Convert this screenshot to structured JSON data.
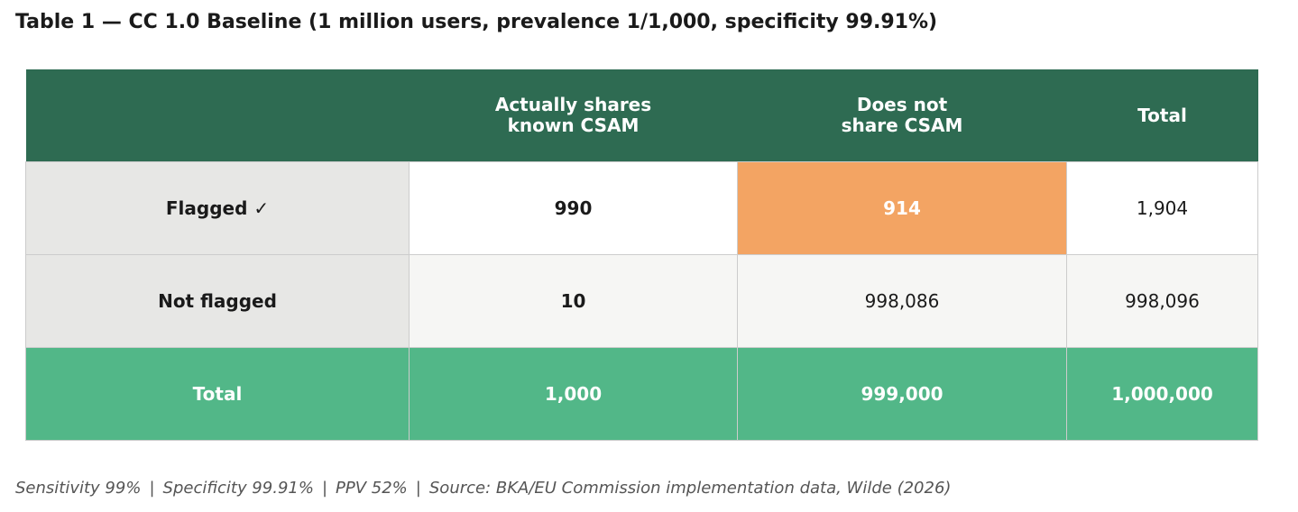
{
  "chart_data": {
    "type": "table",
    "title": "Table 1 — CC 1.0 Baseline  (1 million users, prevalence 1/1,000, specificity 99.91%)",
    "columns": [
      "",
      "Actually shares\nknown CSAM",
      "Does not\nshare CSAM",
      "Total"
    ],
    "rows": [
      {
        "label": "Flagged  ✓",
        "values": [
          "990",
          "914",
          "1,904"
        ]
      },
      {
        "label": "Not flagged",
        "values": [
          "10",
          "998,086",
          "998,096"
        ]
      },
      {
        "label": "Total",
        "values": [
          "1,000",
          "999,000",
          "1,000,000"
        ]
      }
    ],
    "footnote": [
      "Sensitivity 99%",
      "Specificity 99.91%",
      "PPV 52%",
      "Source: BKA/EU Commission implementation data, Wilde (2026)"
    ]
  },
  "colors": {
    "header_bg": "#2e6b52",
    "total_row_bg": "#52b788",
    "highlight_bg": "#f3a463",
    "row_label_bg": "#e7e7e5"
  }
}
